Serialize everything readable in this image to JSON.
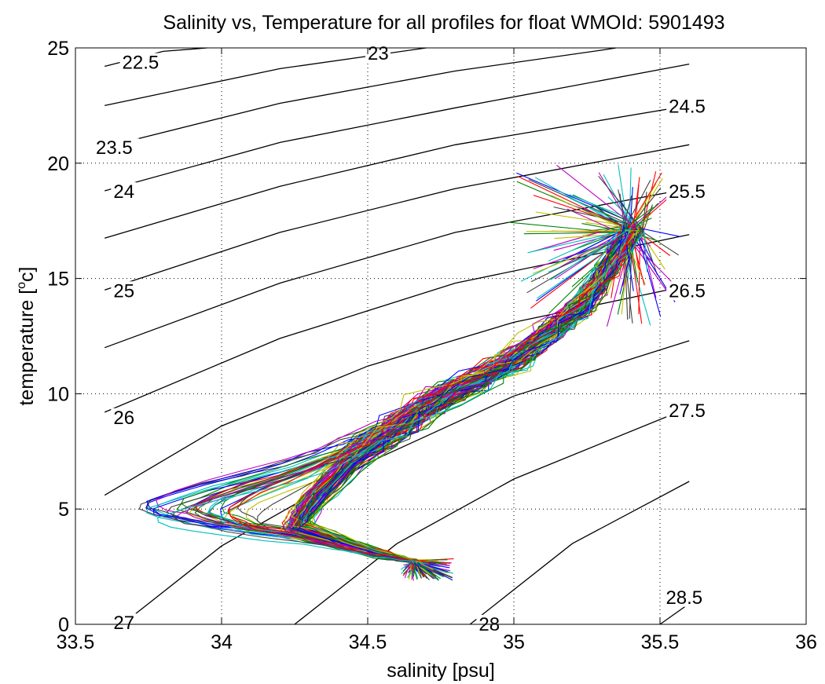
{
  "chart_data": {
    "type": "line",
    "title": "Salinity vs, Temperature for all profiles for float WMOId: 5901493",
    "xlabel": "salinity [psu]",
    "ylabel_main": "temperature [",
    "ylabel_sup": "o",
    "ylabel_end": "c]",
    "xlim": [
      33.5,
      36
    ],
    "ylim": [
      0,
      25
    ],
    "xticks": [
      33.5,
      34,
      34.5,
      35,
      35.5,
      36
    ],
    "xtick_labels": [
      "33.5",
      "34",
      "34.5",
      "35",
      "35.5",
      "36"
    ],
    "yticks": [
      0,
      5,
      10,
      15,
      20,
      25
    ],
    "ytick_labels": [
      "0",
      "5",
      "10",
      "15",
      "20",
      "25"
    ],
    "grid": "dotted",
    "density_contours": [
      {
        "label": "22.5",
        "label_at": [
          33.66,
          24.4
        ],
        "points": [
          [
            33.6,
            24.2
          ],
          [
            33.8,
            24.85
          ],
          [
            33.95,
            25.0
          ]
        ]
      },
      {
        "label": "23",
        "label_at": [
          34.5,
          24.8
        ],
        "points": [
          [
            33.6,
            22.5
          ],
          [
            34.2,
            24.1
          ],
          [
            34.7,
            25.0
          ]
        ]
      },
      {
        "label": "23.5",
        "label_at": [
          33.57,
          20.7
        ],
        "points": [
          [
            33.6,
            20.7
          ],
          [
            34.2,
            22.6
          ],
          [
            34.8,
            24.0
          ],
          [
            35.3,
            24.9
          ],
          [
            35.35,
            25.0
          ]
        ]
      },
      {
        "label": "24",
        "label_at": [
          33.63,
          18.8
        ],
        "points": [
          [
            33.6,
            18.8
          ],
          [
            34.2,
            20.9
          ],
          [
            34.8,
            22.4
          ],
          [
            35.6,
            24.3
          ]
        ]
      },
      {
        "label": "24.5",
        "label_at": [
          35.53,
          22.5
        ],
        "points": [
          [
            33.6,
            16.75
          ],
          [
            34.2,
            19.0
          ],
          [
            34.8,
            20.8
          ],
          [
            35.6,
            22.5
          ]
        ]
      },
      {
        "label": "25",
        "label_at": [
          33.63,
          14.5
        ],
        "points": [
          [
            33.6,
            14.5
          ],
          [
            34.2,
            17.0
          ],
          [
            34.8,
            18.9
          ],
          [
            35.6,
            20.8
          ]
        ]
      },
      {
        "label": "25.5",
        "label_at": [
          35.53,
          18.8
        ],
        "points": [
          [
            33.6,
            12.0
          ],
          [
            34.2,
            14.8
          ],
          [
            34.8,
            17.0
          ],
          [
            35.6,
            18.9
          ]
        ]
      },
      {
        "label": "26",
        "label_at": [
          33.63,
          9.0
        ],
        "points": [
          [
            33.6,
            9.2
          ],
          [
            34.2,
            12.4
          ],
          [
            34.8,
            14.8
          ],
          [
            35.6,
            16.9
          ]
        ]
      },
      {
        "label": "26.5",
        "label_at": [
          35.53,
          14.5
        ],
        "points": [
          [
            33.6,
            5.6
          ],
          [
            34.0,
            8.6
          ],
          [
            34.5,
            11.2
          ],
          [
            35.0,
            13.1
          ],
          [
            35.6,
            14.7
          ]
        ]
      },
      {
        "label": "27",
        "label_at": [
          33.63,
          0.1
        ],
        "points": [
          [
            33.7,
            0.4
          ],
          [
            34.0,
            3.4
          ],
          [
            34.5,
            7.0
          ],
          [
            35.0,
            9.9
          ],
          [
            35.6,
            12.3
          ]
        ]
      },
      {
        "label": "27.5",
        "label_at": [
          35.53,
          9.3
        ],
        "points": [
          [
            34.25,
            0.0
          ],
          [
            34.6,
            3.5
          ],
          [
            35.0,
            6.3
          ],
          [
            35.6,
            9.4
          ]
        ]
      },
      {
        "label": "28",
        "label_at": [
          34.88,
          0.0
        ],
        "points": [
          [
            34.85,
            0.0
          ],
          [
            35.2,
            3.5
          ],
          [
            35.6,
            6.2
          ]
        ]
      },
      {
        "label": "28.5",
        "label_at": [
          35.52,
          1.2
        ],
        "points": [
          [
            35.5,
            0.0
          ],
          [
            35.6,
            0.9
          ]
        ]
      }
    ],
    "profile_colors": [
      "#0000ff",
      "#008000",
      "#ff0000",
      "#00bfbf",
      "#bf00bf",
      "#bfbf00",
      "#404040"
    ],
    "profile_count": 130
  }
}
